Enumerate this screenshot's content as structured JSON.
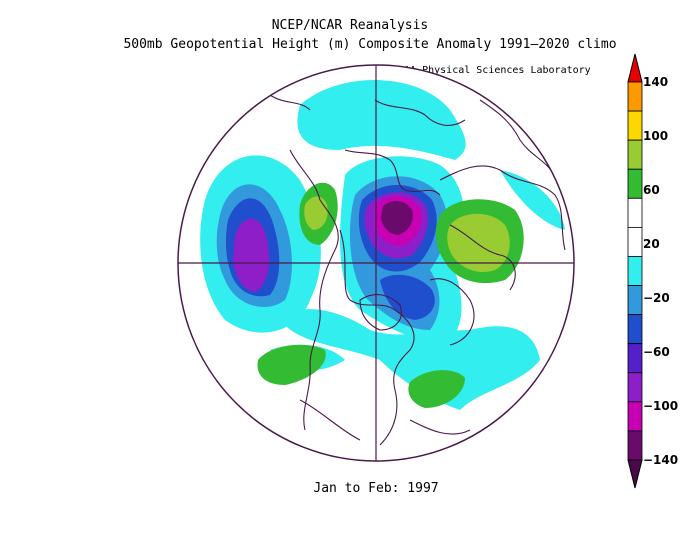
{
  "header": {
    "title": "NCEP/NCAR Reanalysis",
    "subtitle": "500mb Geopotential Height (m) Composite Anomaly 1991–2020 climo",
    "credit": "NOAA Physical Sciences Laboratory"
  },
  "footer": {
    "period": "Jan to Feb: 1997"
  },
  "colorbar": {
    "labels": [
      "140",
      "100",
      "60",
      "20",
      "−20",
      "−60",
      "−100",
      "−140"
    ],
    "colors": [
      "#e60000",
      "#ff9900",
      "#ffd700",
      "#99cc33",
      "#33bb33",
      "#ffffff",
      "#ffffff",
      "#33eeee",
      "#3399dd",
      "#1f4fcc",
      "#5520cc",
      "#8e1ec8",
      "#c800b4",
      "#6a0a6a",
      "#4a0a4a"
    ]
  }
}
